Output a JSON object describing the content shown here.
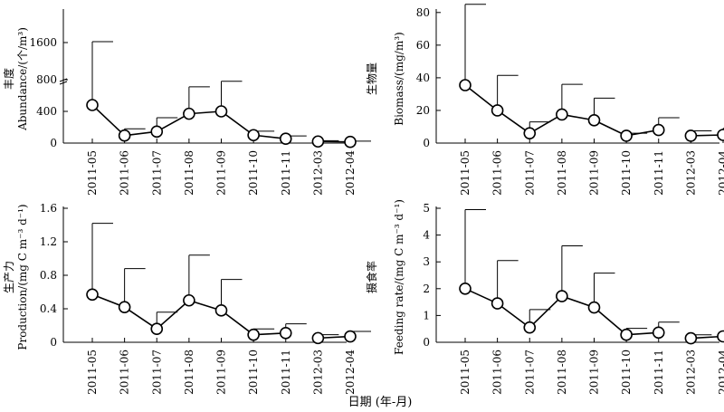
{
  "figure": {
    "xlabel": "日期 (年-月)"
  },
  "chart_data": [
    {
      "type": "line",
      "panel": "top-left",
      "ylabel": "丰度",
      "ylabel2": "Abundance/(个/m³)",
      "categories": [
        "2011-05",
        "2011-06",
        "2011-07",
        "2011-08",
        "2011-09",
        "2011-10",
        "2011-11",
        "2012-03",
        "2012-04"
      ],
      "values": [
        480,
        95,
        145,
        370,
        400,
        100,
        55,
        20,
        15
      ],
      "error_upper": [
        1620,
        180,
        320,
        710,
        780,
        150,
        90,
        30,
        25
      ],
      "y_ticks": [
        0,
        400,
        800,
        1600
      ],
      "y_tick_labels": [
        "0",
        "400",
        "800",
        "1600"
      ],
      "axis_break": [
        800,
        1600
      ],
      "ylim": [
        0,
        2050
      ],
      "grid": false,
      "series_gaps": [
        6
      ]
    },
    {
      "type": "line",
      "panel": "top-right",
      "ylabel": "生物量",
      "ylabel2": "Biomass/(mg/m³)",
      "categories": [
        "2011-05",
        "2011-06",
        "2011-07",
        "2011-08",
        "2011-09",
        "2011-10",
        "2011-11",
        "2012-03",
        "2012-04"
      ],
      "values": [
        35.5,
        20,
        6,
        17.5,
        14,
        4.5,
        8,
        4.5,
        5
      ],
      "error_upper": [
        85,
        41.5,
        13,
        36,
        27.5,
        6,
        15.5,
        7.5,
        9
      ],
      "y_ticks": [
        0,
        20,
        40,
        60,
        80
      ],
      "y_tick_labels": [
        "0",
        "20",
        "40",
        "60",
        "80"
      ],
      "ylim": [
        0,
        81
      ],
      "grid": false,
      "series_gaps": [
        6
      ]
    },
    {
      "type": "line",
      "panel": "bottom-left",
      "ylabel": "生产力",
      "ylabel2": "Production/(mg C m⁻³ d⁻¹)",
      "categories": [
        "2011-05",
        "2011-06",
        "2011-07",
        "2011-08",
        "2011-09",
        "2011-10",
        "2011-11",
        "2012-03",
        "2012-04"
      ],
      "values": [
        0.57,
        0.42,
        0.16,
        0.5,
        0.38,
        0.09,
        0.11,
        0.05,
        0.07
      ],
      "error_upper": [
        1.42,
        0.88,
        0.36,
        1.04,
        0.75,
        0.16,
        0.22,
        0.09,
        0.13
      ],
      "y_ticks": [
        0,
        0.4,
        0.8,
        1.2,
        1.6
      ],
      "y_tick_labels": [
        "0",
        "0.4",
        "0.8",
        "1.2",
        "1.6"
      ],
      "ylim": [
        0,
        1.6
      ],
      "grid": false,
      "series_gaps": [
        6
      ]
    },
    {
      "type": "line",
      "panel": "bottom-right",
      "ylabel": "摄食率",
      "ylabel2": "Feeding rate/(mg C m⁻³ d⁻¹)",
      "categories": [
        "2011-05",
        "2011-06",
        "2011-07",
        "2011-08",
        "2011-09",
        "2011-10",
        "2011-11",
        "2012-03",
        "2012-04"
      ],
      "values": [
        2.0,
        1.45,
        0.55,
        1.72,
        1.3,
        0.28,
        0.36,
        0.15,
        0.22
      ],
      "error_upper": [
        4.95,
        3.05,
        1.22,
        3.6,
        2.58,
        0.52,
        0.75,
        0.28,
        0.42
      ],
      "y_ticks": [
        0,
        1,
        2,
        3,
        4,
        5
      ],
      "y_tick_labels": [
        "0",
        "1",
        "2",
        "3",
        "4",
        "5"
      ],
      "ylim": [
        0,
        5
      ],
      "grid": false,
      "series_gaps": [
        6
      ]
    }
  ]
}
